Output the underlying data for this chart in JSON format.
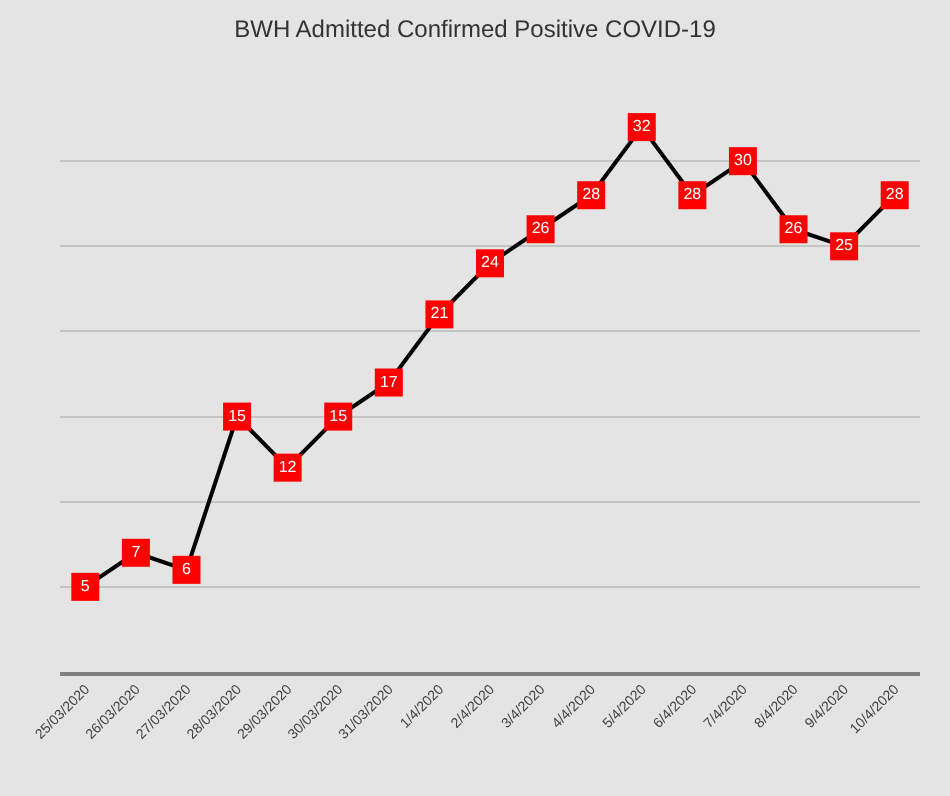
{
  "chart_data": {
    "type": "line",
    "title": "BWH Admitted Confirmed Positive COVID-19",
    "categories": [
      "25/03/2020",
      "26/03/2020",
      "27/03/2020",
      "28/03/2020",
      "29/03/2020",
      "30/03/2020",
      "31/03/2020",
      "1/4/2020",
      "2/4/2020",
      "3/4/2020",
      "4/4/2020",
      "5/4/2020",
      "6/4/2020",
      "7/4/2020",
      "8/4/2020",
      "9/4/2020",
      "10/4/2020"
    ],
    "series": [
      {
        "color": "#000000",
        "colors": [
          "#ff0000",
          "#ff0000",
          "#ff0000",
          "#ff0000",
          "#ff0000",
          "#ff0000",
          "#ff0000",
          "#ff0000",
          "#ff0000",
          "#ff0000",
          "#ff0000",
          "#ff0000",
          "#ff0000",
          "#ff0000",
          "#ff0000",
          "#ff0000",
          "#ff0000"
        ],
        "values": [
          5,
          7,
          6,
          15,
          12,
          15,
          17,
          21,
          24,
          26,
          28,
          32,
          28,
          30,
          26,
          25,
          28
        ]
      }
    ],
    "yticks": [
      {
        "value": 0,
        "label": null
      },
      {
        "value": 5,
        "label": null
      },
      {
        "value": 10,
        "label": null
      },
      {
        "value": 15,
        "label": null
      },
      {
        "value": 20,
        "label": null
      },
      {
        "value": 25,
        "label": null
      },
      {
        "value": 30,
        "label": null
      }
    ],
    "tick_labels": "x",
    "grid": "y",
    "marker": "square",
    "line_style": "solid",
    "data_labels": true
  }
}
